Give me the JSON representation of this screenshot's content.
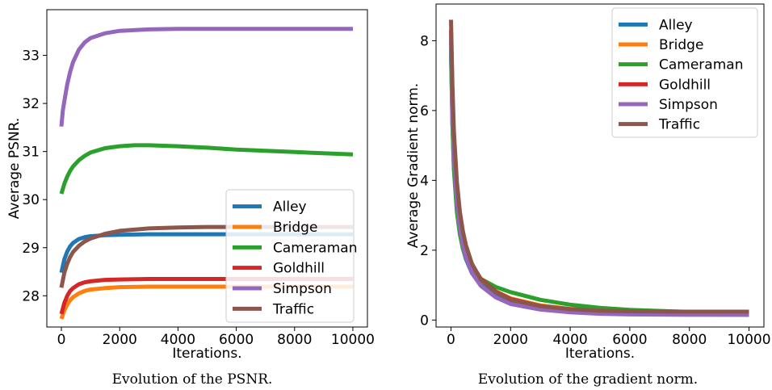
{
  "colors": {
    "Alley": "#1f77b4",
    "Bridge": "#ff7f0e",
    "Cameraman": "#2ca02c",
    "Goldhill": "#d62728",
    "Simpson": "#9467bd",
    "Traffic": "#8c564b"
  },
  "chart_data": [
    {
      "type": "line",
      "title": "",
      "caption": "Evolution of the PSNR.",
      "xlabel": "Iterations.",
      "ylabel": "Average PSNR.",
      "xlim": [
        -500,
        10500
      ],
      "ylim": [
        27.35,
        33.95
      ],
      "xticks": [
        0,
        2000,
        4000,
        6000,
        8000,
        10000
      ],
      "yticks": [
        28,
        29,
        30,
        31,
        32,
        33
      ],
      "legend": "lower-right",
      "grid": false,
      "series": [
        {
          "name": "Alley",
          "x": [
            0,
            100,
            200,
            300,
            400,
            600,
            800,
            1000,
            1500,
            2000,
            3000,
            4000,
            6000,
            8000,
            10000
          ],
          "y": [
            28.48,
            28.76,
            28.92,
            29.03,
            29.1,
            29.18,
            29.22,
            29.24,
            29.26,
            29.27,
            29.28,
            29.28,
            29.28,
            29.28,
            29.28
          ]
        },
        {
          "name": "Bridge",
          "x": [
            0,
            100,
            200,
            300,
            400,
            600,
            800,
            1000,
            1500,
            2000,
            3000,
            4000,
            6000,
            8000,
            10000
          ],
          "y": [
            27.52,
            27.7,
            27.82,
            27.91,
            27.97,
            28.05,
            28.1,
            28.13,
            28.16,
            28.18,
            28.19,
            28.19,
            28.19,
            28.19,
            28.19
          ]
        },
        {
          "name": "Cameraman",
          "x": [
            0,
            100,
            200,
            300,
            400,
            600,
            800,
            1000,
            1500,
            2000,
            2500,
            3000,
            4000,
            5000,
            6000,
            8000,
            10000
          ],
          "y": [
            30.12,
            30.33,
            30.48,
            30.6,
            30.69,
            30.82,
            30.91,
            30.98,
            31.07,
            31.11,
            31.13,
            31.13,
            31.11,
            31.08,
            31.04,
            30.99,
            30.94
          ]
        },
        {
          "name": "Goldhill",
          "x": [
            0,
            100,
            200,
            300,
            400,
            600,
            800,
            1000,
            1500,
            2000,
            3000,
            4000,
            6000,
            8000,
            10000
          ],
          "y": [
            27.62,
            27.85,
            28.0,
            28.1,
            28.16,
            28.24,
            28.28,
            28.3,
            28.33,
            28.34,
            28.35,
            28.35,
            28.35,
            28.35,
            28.35
          ]
        },
        {
          "name": "Simpson",
          "x": [
            0,
            50,
            100,
            200,
            300,
            400,
            600,
            800,
            1000,
            1500,
            2000,
            3000,
            4000,
            6000,
            8000,
            10000
          ],
          "y": [
            31.52,
            31.85,
            32.05,
            32.4,
            32.66,
            32.86,
            33.12,
            33.27,
            33.36,
            33.46,
            33.51,
            33.54,
            33.55,
            33.55,
            33.55,
            33.55
          ]
        },
        {
          "name": "Traffic",
          "x": [
            0,
            100,
            200,
            300,
            400,
            600,
            800,
            1000,
            1500,
            2000,
            3000,
            4000,
            5000,
            6000,
            8000,
            10000
          ],
          "y": [
            28.17,
            28.48,
            28.67,
            28.81,
            28.91,
            29.04,
            29.13,
            29.19,
            29.29,
            29.35,
            29.4,
            29.42,
            29.43,
            29.43,
            29.43,
            29.43
          ]
        }
      ]
    },
    {
      "type": "line",
      "title": "",
      "caption": "Evolution of the gradient norm.",
      "xlabel": "Iterations.",
      "ylabel": "Average Gradient norm.",
      "xlim": [
        -500,
        10500
      ],
      "ylim": [
        -0.2,
        9.05
      ],
      "xticks": [
        0,
        2000,
        4000,
        6000,
        8000,
        10000
      ],
      "yticks": [
        0,
        2,
        4,
        6,
        8
      ],
      "legend": "top-right",
      "grid": false,
      "series": [
        {
          "name": "Alley",
          "x": [
            0,
            50,
            100,
            200,
            300,
            400,
            500,
            700,
            1000,
            1500,
            2000,
            3000,
            4000,
            5000,
            6000,
            8000,
            10000
          ],
          "y": [
            7.6,
            5.6,
            4.4,
            3.2,
            2.5,
            2.05,
            1.75,
            1.35,
            1.0,
            0.7,
            0.5,
            0.33,
            0.25,
            0.2,
            0.18,
            0.16,
            0.15
          ]
        },
        {
          "name": "Bridge",
          "x": [
            0,
            50,
            100,
            200,
            300,
            400,
            500,
            700,
            1000,
            1500,
            2000,
            3000,
            4000,
            5000,
            6000,
            8000,
            10000
          ],
          "y": [
            8.0,
            6.1,
            4.9,
            3.6,
            2.85,
            2.35,
            2.0,
            1.55,
            1.15,
            0.82,
            0.62,
            0.42,
            0.32,
            0.27,
            0.24,
            0.21,
            0.2
          ]
        },
        {
          "name": "Cameraman",
          "x": [
            0,
            50,
            100,
            200,
            300,
            400,
            500,
            700,
            1000,
            1500,
            2000,
            3000,
            4000,
            5000,
            6000,
            8000,
            10000
          ],
          "y": [
            7.8,
            5.6,
            4.3,
            3.1,
            2.45,
            2.05,
            1.78,
            1.45,
            1.18,
            0.95,
            0.8,
            0.58,
            0.44,
            0.35,
            0.29,
            0.23,
            0.22
          ]
        },
        {
          "name": "Goldhill",
          "x": [
            0,
            50,
            100,
            200,
            300,
            400,
            500,
            700,
            1000,
            1500,
            2000,
            3000,
            4000,
            5000,
            6000,
            8000,
            10000
          ],
          "y": [
            8.3,
            6.4,
            5.1,
            3.75,
            2.95,
            2.45,
            2.08,
            1.6,
            1.18,
            0.82,
            0.6,
            0.4,
            0.3,
            0.25,
            0.22,
            0.2,
            0.19
          ]
        },
        {
          "name": "Simpson",
          "x": [
            0,
            50,
            100,
            200,
            300,
            400,
            500,
            700,
            1000,
            1500,
            2000,
            3000,
            4000,
            5000,
            6000,
            8000,
            10000
          ],
          "y": [
            8.1,
            6.0,
            4.7,
            3.4,
            2.65,
            2.15,
            1.8,
            1.35,
            0.98,
            0.65,
            0.46,
            0.3,
            0.22,
            0.18,
            0.16,
            0.15,
            0.15
          ]
        },
        {
          "name": "Traffic",
          "x": [
            0,
            50,
            100,
            200,
            300,
            400,
            500,
            700,
            1000,
            1500,
            2000,
            3000,
            4000,
            5000,
            6000,
            8000,
            10000
          ],
          "y": [
            8.6,
            6.7,
            5.4,
            3.95,
            3.1,
            2.55,
            2.15,
            1.62,
            1.16,
            0.8,
            0.58,
            0.4,
            0.31,
            0.27,
            0.25,
            0.24,
            0.24
          ]
        }
      ]
    }
  ]
}
